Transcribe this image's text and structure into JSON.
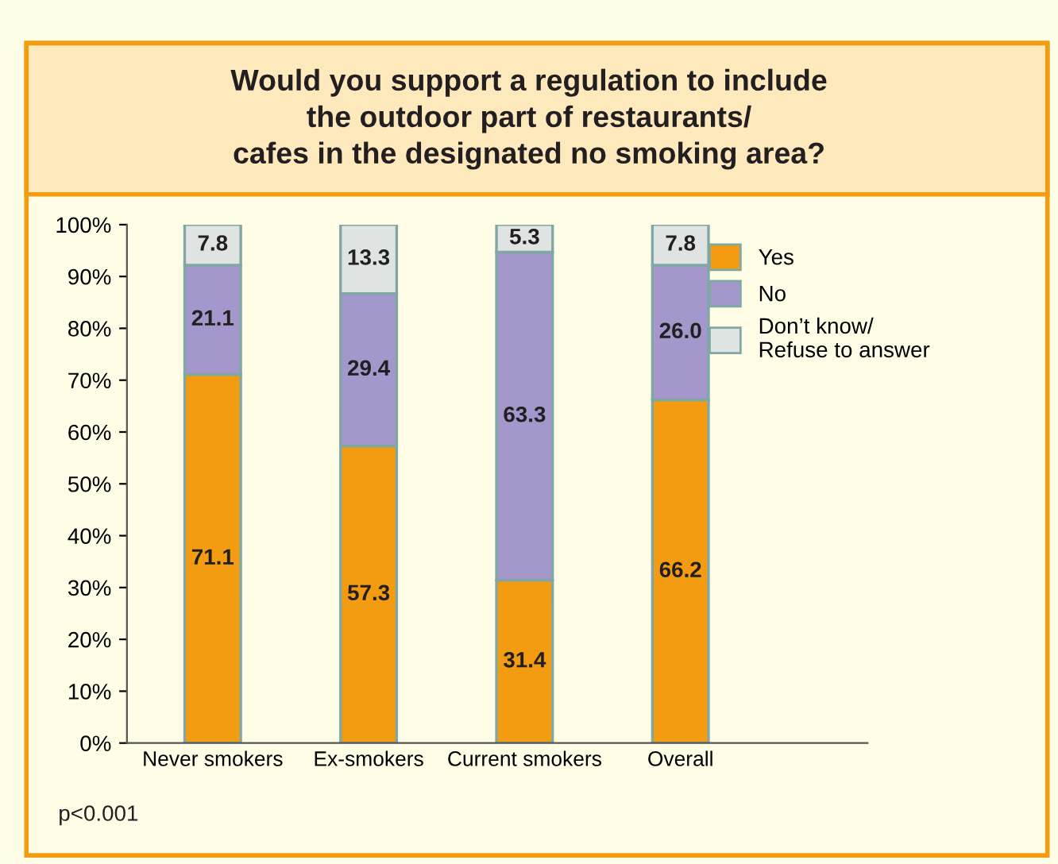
{
  "chart_data": {
    "type": "bar",
    "title": "Would you support a regulation to include\nthe outdoor part of restaurants/\ncafes in the designated no smoking area?",
    "categories": [
      "Never smokers",
      "Ex-smokers",
      "Current smokers",
      "Overall"
    ],
    "stacked": true,
    "series": [
      {
        "name": "Yes",
        "color": "#f39c12",
        "values": [
          71.1,
          57.3,
          31.4,
          66.2
        ],
        "value_labels": [
          "71.1",
          "57.3",
          "31.4",
          "66.2"
        ]
      },
      {
        "name": "No",
        "color": "#a497cc",
        "values": [
          21.1,
          29.4,
          63.3,
          26.0
        ],
        "value_labels": [
          "21.1",
          "29.4",
          "63.3",
          "26.0"
        ]
      },
      {
        "name": "Don’t know/\nRefuse to answer",
        "color": "#dfe3e1",
        "values": [
          7.8,
          13.3,
          5.3,
          7.8
        ],
        "value_labels": [
          "7.8",
          "13.3",
          "5.3",
          "7.8"
        ]
      }
    ],
    "ylim": [
      0,
      100
    ],
    "yticks": [
      {
        "value": 0,
        "label": "0%"
      },
      {
        "value": 10,
        "label": "10%"
      },
      {
        "value": 20,
        "label": "20%"
      },
      {
        "value": 30,
        "label": "30%"
      },
      {
        "value": 40,
        "label": "40%"
      },
      {
        "value": 50,
        "label": "50%"
      },
      {
        "value": 60,
        "label": "60%"
      },
      {
        "value": 70,
        "label": "70%"
      },
      {
        "value": 80,
        "label": "80%"
      },
      {
        "value": 90,
        "label": "90%"
      },
      {
        "value": 100,
        "label": "100%"
      }
    ],
    "grid": false,
    "legend": "top right",
    "annotations": [
      "p<0.001"
    ]
  }
}
